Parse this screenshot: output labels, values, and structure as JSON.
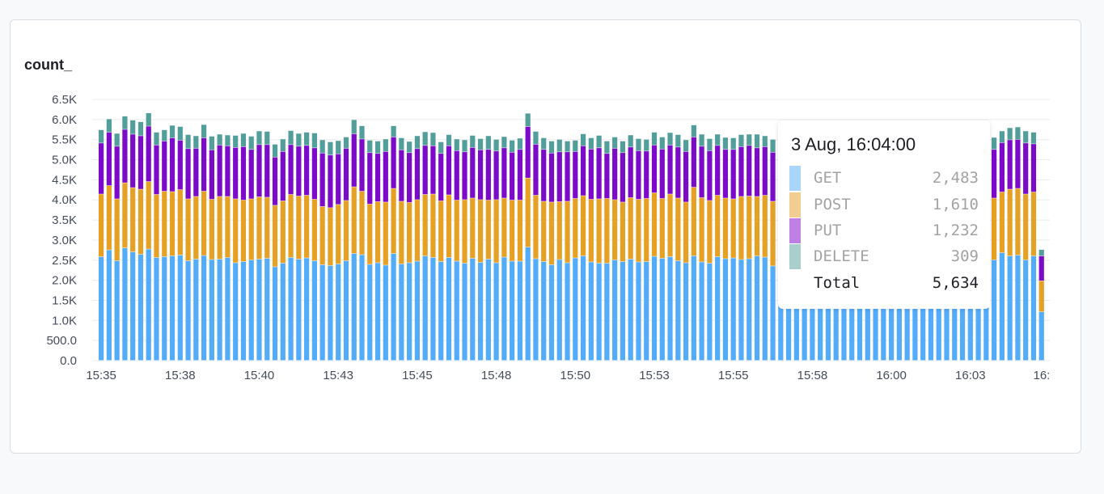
{
  "panel": {
    "title": "count_"
  },
  "tooltip": {
    "title": "3 Aug, 16:04:00",
    "rows": [
      {
        "label": "GET",
        "value": "2,483",
        "color": "#aad6fb"
      },
      {
        "label": "POST",
        "value": "1,610",
        "color": "#f1cd91"
      },
      {
        "label": "PUT",
        "value": "1,232",
        "color": "#bf80e6"
      },
      {
        "label": "DELETE",
        "value": "309",
        "color": "#a9cfcd"
      }
    ],
    "total_label": "Total",
    "total_value": "5,634"
  },
  "colors": {
    "GET": "#53acfa",
    "POST": "#e6a023",
    "PUT": "#7b0ac9",
    "DELETE": "#529e9b",
    "grid": "#ececef",
    "axis_text": "#464c59"
  },
  "chart_data": {
    "type": "bar",
    "stacked": true,
    "title": "count_",
    "xlabel": "",
    "ylabel": "",
    "ylim": [
      0,
      6500
    ],
    "y_ticks": [
      "0.0",
      "500.0",
      "1.0K",
      "1.5K",
      "2.0K",
      "2.5K",
      "3.0K",
      "3.5K",
      "4.0K",
      "4.5K",
      "5.0K",
      "5.5K",
      "6.0K",
      "6.5K"
    ],
    "x_tick_labels": [
      "15:35",
      "15:38",
      "15:40",
      "15:43",
      "15:45",
      "15:48",
      "15:50",
      "15:53",
      "15:55",
      "15:58",
      "16:00",
      "16:03",
      "16:"
    ],
    "x_tick_every_n_bars": 10,
    "bar_interval": "15s",
    "grid": true,
    "legend": [
      "GET",
      "POST",
      "PUT",
      "DELETE"
    ],
    "series": [
      {
        "name": "GET",
        "values": [
          2580,
          2750,
          2480,
          2800,
          2700,
          2640,
          2770,
          2560,
          2580,
          2600,
          2620,
          2480,
          2520,
          2610,
          2510,
          2520,
          2560,
          2430,
          2460,
          2500,
          2520,
          2540,
          2330,
          2420,
          2560,
          2520,
          2550,
          2480,
          2380,
          2360,
          2400,
          2480,
          2660,
          2630,
          2390,
          2430,
          2370,
          2660,
          2400,
          2430,
          2470,
          2600,
          2560,
          2460,
          2560,
          2470,
          2420,
          2540,
          2440,
          2520,
          2430,
          2570,
          2470,
          2470,
          2820,
          2530,
          2460,
          2380,
          2510,
          2430,
          2550,
          2600,
          2450,
          2420,
          2420,
          2500,
          2460,
          2520,
          2450,
          2460,
          2590,
          2540,
          2580,
          2480,
          2430,
          2600,
          2450,
          2420,
          2580,
          2530,
          2550,
          2510,
          2530,
          2600,
          2570,
          2350,
          2550,
          2480,
          2470,
          2520,
          2500,
          2560,
          2440,
          2480,
          2510,
          2550,
          2500,
          2480,
          2520,
          2490,
          2500,
          2530,
          2480,
          2510,
          2540,
          2500,
          2470,
          2520,
          2490,
          2460,
          2483,
          2410,
          2490,
          2500,
          2680,
          2600,
          2620,
          2500,
          2600,
          1210
        ]
      },
      {
        "name": "POST",
        "values": [
          1560,
          1600,
          1540,
          1620,
          1600,
          1620,
          1680,
          1570,
          1630,
          1600,
          1630,
          1540,
          1560,
          1600,
          1500,
          1560,
          1520,
          1590,
          1530,
          1520,
          1550,
          1520,
          1530,
          1550,
          1570,
          1570,
          1560,
          1530,
          1450,
          1440,
          1480,
          1500,
          1660,
          1580,
          1500,
          1520,
          1570,
          1620,
          1560,
          1500,
          1530,
          1530,
          1580,
          1510,
          1560,
          1520,
          1580,
          1500,
          1560,
          1470,
          1570,
          1470,
          1520,
          1520,
          1720,
          1580,
          1500,
          1560,
          1440,
          1530,
          1480,
          1500,
          1560,
          1600,
          1610,
          1500,
          1480,
          1530,
          1560,
          1570,
          1580,
          1490,
          1560,
          1560,
          1510,
          1710,
          1600,
          1560,
          1530,
          1510,
          1470,
          1570,
          1560,
          1480,
          1540,
          1610,
          1590,
          1580,
          1510,
          1590,
          1550,
          1640,
          1540,
          1560,
          1520,
          1510,
          1600,
          1560,
          1570,
          1530,
          1560,
          1620,
          1570,
          1500,
          1540,
          1590,
          1580,
          1520,
          1600,
          1610,
          1610,
          1590,
          1560,
          1540,
          1510,
          1660,
          1660,
          1640,
          1590,
          770
        ]
      },
      {
        "name": "PUT",
        "values": [
          1270,
          1330,
          1310,
          1330,
          1330,
          1330,
          1380,
          1230,
          1250,
          1340,
          1230,
          1250,
          1200,
          1330,
          1230,
          1280,
          1260,
          1280,
          1330,
          1230,
          1300,
          1310,
          1200,
          1230,
          1240,
          1240,
          1240,
          1280,
          1330,
          1310,
          1260,
          1300,
          1320,
          1300,
          1280,
          1200,
          1260,
          1280,
          1280,
          1240,
          1270,
          1220,
          1200,
          1180,
          1220,
          1230,
          1190,
          1260,
          1240,
          1260,
          1210,
          1250,
          1190,
          1260,
          1280,
          1270,
          1290,
          1220,
          1240,
          1230,
          1170,
          1240,
          1250,
          1270,
          1120,
          1280,
          1230,
          1260,
          1210,
          1180,
          1190,
          1230,
          1220,
          1270,
          1260,
          1250,
          1280,
          1240,
          1240,
          1210,
          1230,
          1240,
          1260,
          1210,
          1210,
          1220,
          1220,
          1260,
          1240,
          1240,
          1240,
          1240,
          1230,
          1240,
          1240,
          1240,
          1220,
          1240,
          1210,
          1240,
          1200,
          1230,
          1220,
          1230,
          1210,
          1240,
          1250,
          1230,
          1230,
          1232,
          1232,
          1240,
          1200,
          1210,
          1230,
          1230,
          1220,
          1270,
          1200,
          620
        ]
      },
      {
        "name": "DELETE",
        "values": [
          330,
          330,
          320,
          330,
          350,
          350,
          330,
          320,
          280,
          310,
          340,
          350,
          310,
          330,
          340,
          270,
          270,
          300,
          330,
          330,
          340,
          330,
          320,
          310,
          350,
          320,
          330,
          370,
          330,
          330,
          330,
          280,
          350,
          330,
          310,
          310,
          310,
          280,
          300,
          280,
          320,
          340,
          330,
          290,
          280,
          290,
          300,
          300,
          280,
          340,
          290,
          280,
          300,
          280,
          330,
          320,
          290,
          300,
          310,
          270,
          280,
          300,
          280,
          310,
          310,
          280,
          290,
          300,
          300,
          290,
          320,
          300,
          310,
          310,
          290,
          300,
          300,
          300,
          280,
          300,
          290,
          300,
          280,
          340,
          270,
          320,
          310,
          290,
          290,
          310,
          310,
          320,
          290,
          290,
          300,
          310,
          320,
          310,
          300,
          320,
          310,
          320,
          310,
          290,
          300,
          310,
          320,
          300,
          310,
          309,
          309,
          300,
          300,
          300,
          290,
          300,
          310,
          300,
          290,
          160
        ]
      }
    ]
  }
}
